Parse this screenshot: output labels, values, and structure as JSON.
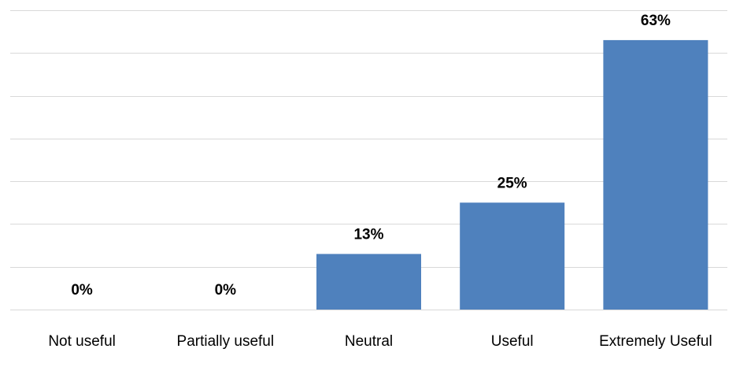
{
  "chart_data": {
    "type": "bar",
    "categories": [
      "Not useful",
      "Partially useful",
      "Neutral",
      "Useful",
      "Extremely Useful"
    ],
    "values": [
      0,
      0,
      13,
      25,
      63
    ],
    "data_labels": [
      "0%",
      "0%",
      "13%",
      "25%",
      "63%"
    ],
    "title": "",
    "xlabel": "",
    "ylabel": "",
    "ylim": [
      0,
      70
    ],
    "grid": true,
    "legend": "none",
    "bar_color": "#4f81bd"
  }
}
